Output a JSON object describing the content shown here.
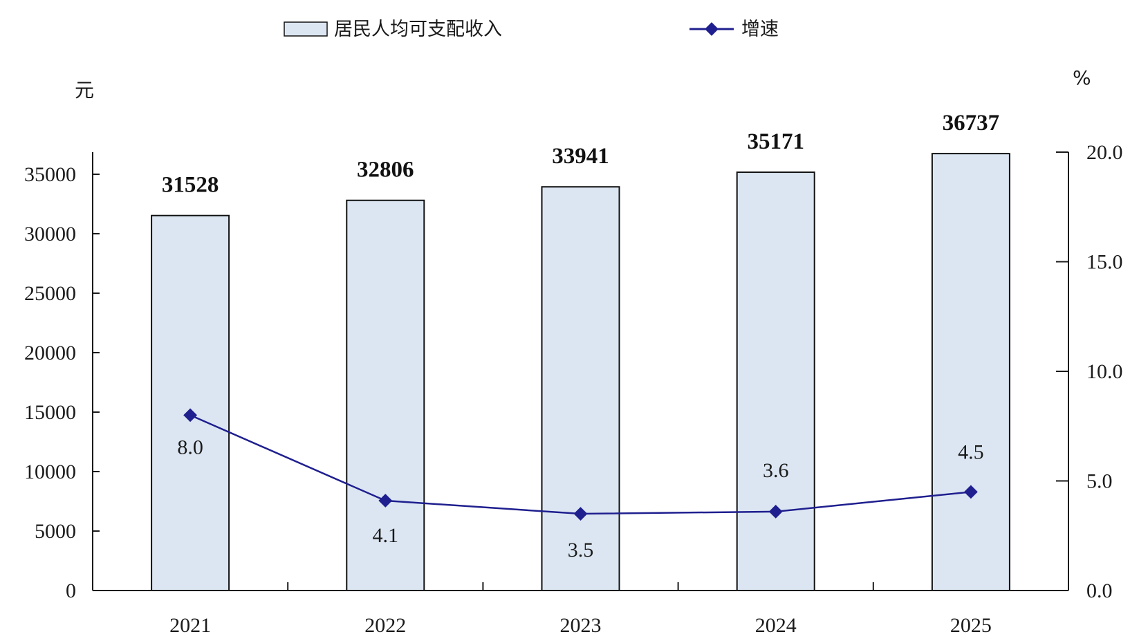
{
  "chart_data": {
    "type": "bar",
    "categories": [
      "2021",
      "2022",
      "2023",
      "2024",
      "2025"
    ],
    "series": [
      {
        "name": "居民人均可支配收入",
        "kind": "bar",
        "axis": "left",
        "values": [
          31528,
          32806,
          33941,
          35171,
          36737
        ],
        "labels": [
          "31528",
          "32806",
          "33941",
          "35171",
          "36737"
        ],
        "color": "#dce6f2"
      },
      {
        "name": "增速",
        "kind": "line",
        "axis": "right",
        "values": [
          8.0,
          4.1,
          3.5,
          3.6,
          4.5
        ],
        "labels": [
          "8.0",
          "4.1",
          "3.5",
          "3.6",
          "4.5"
        ],
        "color": "#1f1f8f"
      }
    ],
    "y_left": {
      "unit": "元",
      "ylim": [
        0,
        37000
      ],
      "ticks": [
        0,
        5000,
        10000,
        15000,
        20000,
        25000,
        30000,
        35000
      ],
      "tick_labels": [
        "0",
        "5000",
        "10000",
        "15000",
        "20000",
        "25000",
        "30000",
        "35000"
      ]
    },
    "y_right": {
      "unit": "%",
      "ylim": [
        0,
        20
      ],
      "ticks": [
        0,
        5,
        10,
        15,
        20
      ],
      "tick_labels": [
        "0.0",
        "5.0",
        "10.0",
        "15.0",
        "20.0"
      ]
    },
    "legend": {
      "position": "top",
      "items": [
        "居民人均可支配收入",
        "增速"
      ]
    },
    "grid": false,
    "colors": {
      "bar_fill": "#dce6f2",
      "bar_stroke": "#111111",
      "line": "#1f1f8f",
      "axis": "#1a1a1a"
    }
  }
}
